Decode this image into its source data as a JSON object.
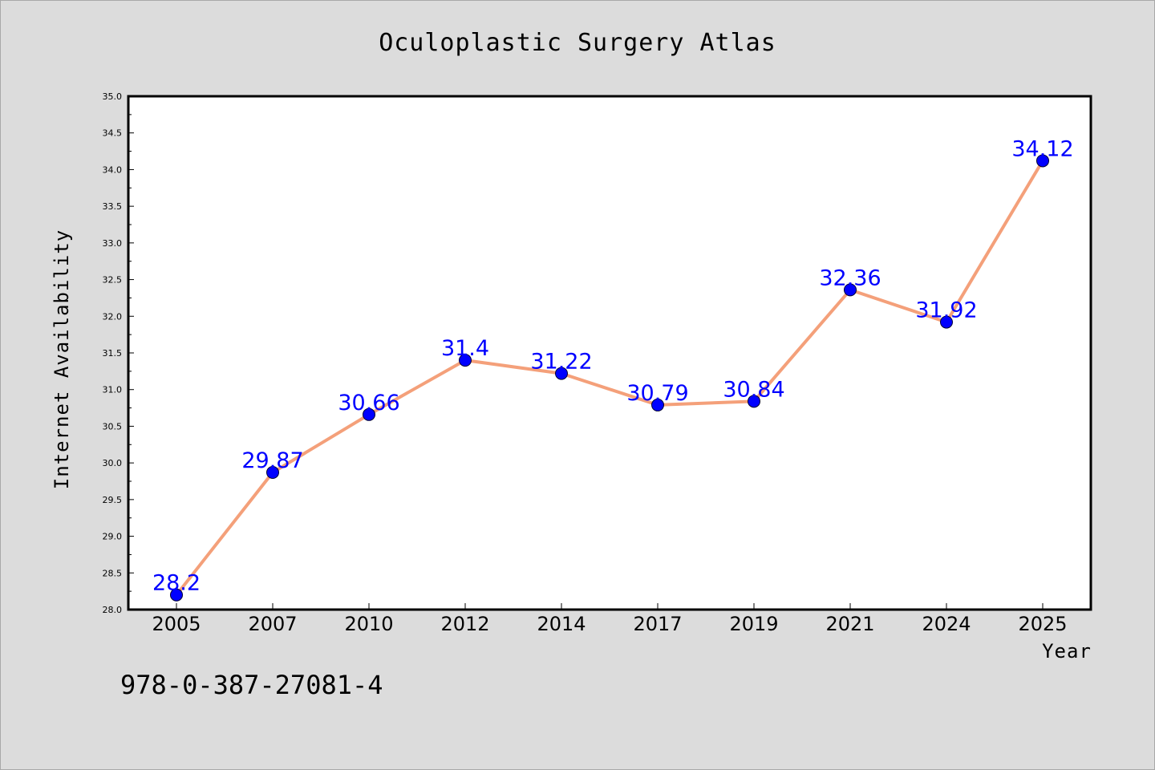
{
  "chart_data": {
    "type": "line",
    "title": "Oculoplastic Surgery Atlas",
    "xlabel": "Year",
    "ylabel": "Internet Availability",
    "categories": [
      "2005",
      "2007",
      "2010",
      "2012",
      "2014",
      "2017",
      "2019",
      "2021",
      "2024",
      "2025"
    ],
    "series": [
      {
        "values": [
          28.2,
          29.87,
          30.66,
          31.4,
          31.22,
          30.79,
          30.84,
          32.36,
          31.92,
          34.12
        ],
        "labels": [
          "28.2",
          "29.87",
          "30.66",
          "31.4",
          "31.22",
          "30.79",
          "30.84",
          "32.36",
          "31.92",
          "34.12"
        ],
        "line_color": "#f4a07a",
        "marker_color": "#0000ff"
      }
    ],
    "ylim": [
      28.0,
      35.0
    ],
    "yticks": [
      "28.0",
      "28.5",
      "29.0",
      "29.5",
      "30.0",
      "30.5",
      "31.0",
      "31.5",
      "32.0",
      "32.5",
      "33.0",
      "33.5",
      "34.0",
      "34.5",
      "35.0"
    ],
    "grid": false,
    "legend": "none"
  },
  "footnote": "978-0-387-27081-4",
  "colors": {
    "background": "#dcdcdc",
    "plot_background": "#ffffff",
    "label_color": "#0000ff"
  }
}
